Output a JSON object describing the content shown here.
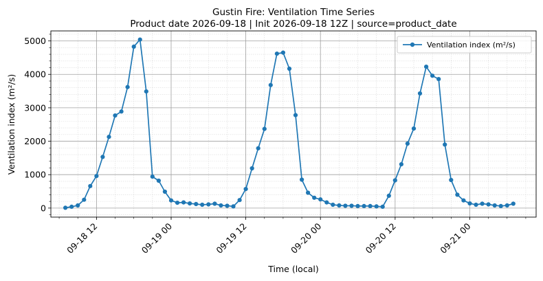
{
  "chart_data": {
    "type": "line",
    "title": "Gustin Fire: Ventilation Time Series",
    "subtitle": "Product date 2026-09-18 | Init 2026-09-18 12Z | source=product_date",
    "xlabel": "Time (local)",
    "ylabel": "Ventilation index (m²/s)",
    "x_start": "2026-09-18 07:00",
    "x_step_hours": 1,
    "xlim": [
      "2026-09-18 04:40",
      "2026-09-21 10:40"
    ],
    "ylim": [
      -270,
      5300
    ],
    "yticks": [
      0,
      1000,
      2000,
      3000,
      4000,
      5000
    ],
    "xticks": [
      {
        "label": "09-18 12",
        "time": "2026-09-18 12:00"
      },
      {
        "label": "09-19 00",
        "time": "2026-09-19 00:00"
      },
      {
        "label": "09-19 12",
        "time": "2026-09-19 12:00"
      },
      {
        "label": "09-20 00",
        "time": "2026-09-20 00:00"
      },
      {
        "label": "09-20 12",
        "time": "2026-09-20 12:00"
      },
      {
        "label": "09-21 00",
        "time": "2026-09-21 00:00"
      }
    ],
    "grid": true,
    "legend_position": "top-right",
    "series": [
      {
        "name": "Ventilation index (m²/s)",
        "color": "#1f77b4",
        "values": [
          10,
          40,
          80,
          250,
          660,
          960,
          1530,
          2130,
          2770,
          2890,
          3620,
          4830,
          5040,
          3490,
          940,
          820,
          490,
          230,
          160,
          170,
          140,
          120,
          100,
          110,
          130,
          80,
          70,
          50,
          240,
          570,
          1190,
          1790,
          2370,
          3680,
          4620,
          4650,
          4170,
          2780,
          850,
          460,
          310,
          260,
          170,
          100,
          80,
          70,
          70,
          60,
          60,
          60,
          50,
          40,
          370,
          830,
          1310,
          1930,
          2380,
          3430,
          4230,
          3960,
          3860,
          1900,
          840,
          400,
          230,
          140,
          100,
          130,
          110,
          80,
          60,
          80,
          130
        ]
      }
    ]
  }
}
